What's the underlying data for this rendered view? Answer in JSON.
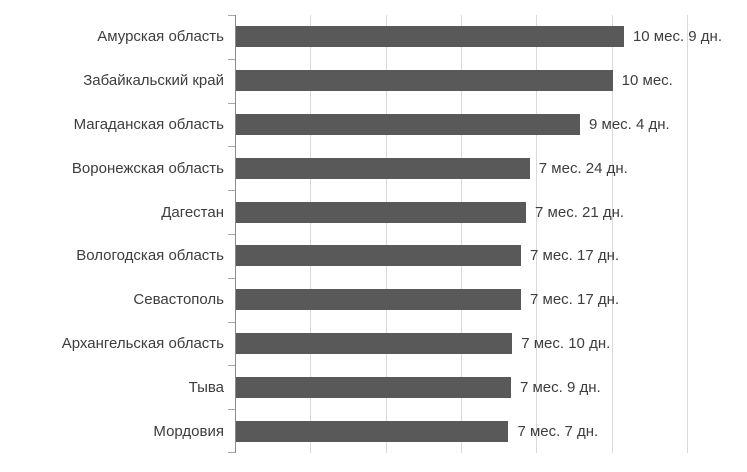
{
  "chart_data": {
    "type": "bar",
    "orientation": "horizontal",
    "title": "",
    "categories": [
      "Амурская область",
      "Забайкальский край",
      "Магаданская область",
      "Воронежская область",
      "Дагестан",
      "Вологодская область",
      "Севастополь",
      "Архангельская область",
      "Тыва",
      "Мордовия"
    ],
    "values_days": [
      309,
      300,
      274,
      234,
      231,
      227,
      227,
      220,
      219,
      217
    ],
    "value_labels": [
      "10 мес. 9 дн.",
      "10 мес.",
      "9 мес. 4 дн.",
      "7 мес. 24 дн.",
      "7 мес. 21 дн.",
      "7 мес. 17 дн.",
      "7 мес. 17 дн.",
      "7 мес. 10 дн.",
      "7 мес. 9 дн.",
      "7 мес. 7 дн."
    ],
    "xaxis": {
      "min_days": 0,
      "max_days": 360,
      "gridline_interval_days": 60,
      "grid": true,
      "tick_labels_visible": false
    },
    "legend": "none",
    "colors": {
      "bar": "#595959",
      "gridline": "#d9d9d9",
      "axis": "#8c8c8c",
      "tick": "#a6a6a6",
      "text": "#3d3d3d",
      "background": "#ffffff"
    }
  }
}
